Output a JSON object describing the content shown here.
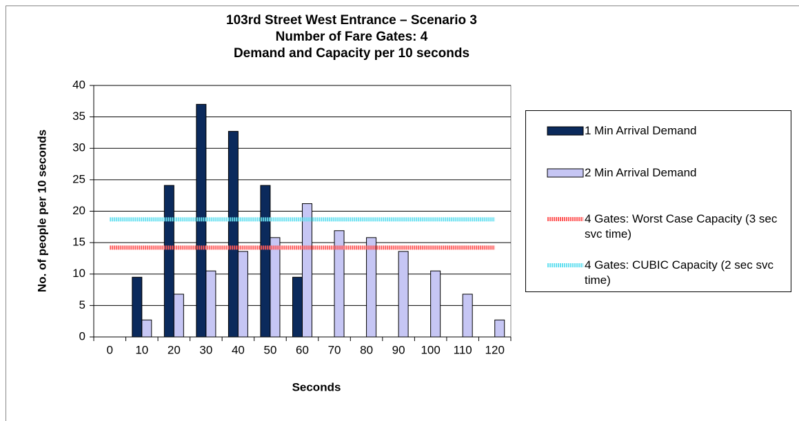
{
  "chart_data": {
    "type": "bar",
    "title": [
      "103rd Street West Entrance – Scenario 3",
      "Number of Fare Gates: 4",
      "Demand and Capacity per 10 seconds"
    ],
    "x_label": "Seconds",
    "y_label": "No. of people per 10 seconds",
    "categories": [
      0,
      10,
      20,
      30,
      40,
      50,
      60,
      70,
      80,
      90,
      100,
      110,
      120
    ],
    "series": [
      {
        "name": "1 Min Arrival Demand",
        "type": "bar",
        "color": "#0b2a5c",
        "values": [
          0,
          9.5,
          24.1,
          37,
          32.7,
          24.1,
          9.5,
          0,
          0,
          0,
          0,
          0,
          0
        ]
      },
      {
        "name": "2 Min Arrival Demand",
        "type": "bar",
        "color": "#c6c6f4",
        "values": [
          0,
          2.7,
          6.8,
          10.5,
          13.6,
          15.8,
          21.2,
          16.9,
          15.8,
          13.6,
          10.5,
          6.8,
          2.7
        ]
      },
      {
        "name": "4 Gates: Worst Case Capacity (3 sec svc time)",
        "type": "line",
        "color": "#ff5a5a",
        "values": [
          14.2,
          14.2,
          14.2,
          14.2,
          14.2,
          14.2,
          14.2,
          14.2,
          14.2,
          14.2,
          14.2,
          14.2,
          14.2
        ]
      },
      {
        "name": "4 Gates: CUBIC Capacity (2 sec svc time)",
        "type": "line",
        "color": "#66e0f0",
        "values": [
          18.7,
          18.7,
          18.7,
          18.7,
          18.7,
          18.7,
          18.7,
          18.7,
          18.7,
          18.7,
          18.7,
          18.7,
          18.7
        ]
      }
    ],
    "ylim": [
      0,
      40
    ],
    "yticks": [
      0,
      5,
      10,
      15,
      20,
      25,
      30,
      35,
      40
    ],
    "grid": true,
    "legend": "right"
  }
}
